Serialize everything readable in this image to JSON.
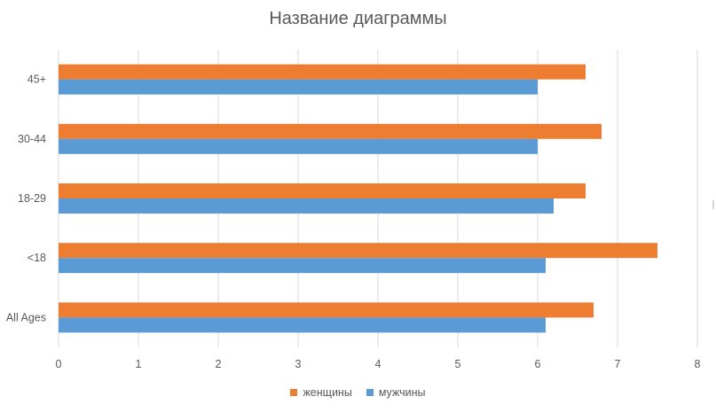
{
  "chart_data": {
    "type": "bar",
    "orientation": "horizontal",
    "title": "Название диаграммы",
    "categories": [
      "All Ages",
      "<18",
      "18-29",
      "30-44",
      "45+"
    ],
    "series": [
      {
        "name": "женщины",
        "color": "#ED7D31",
        "values": [
          6.7,
          7.5,
          6.6,
          6.8,
          6.6
        ]
      },
      {
        "name": "мужчины",
        "color": "#5B9BD5",
        "values": [
          6.1,
          6.1,
          6.2,
          6.0,
          6.0
        ]
      }
    ],
    "xlim": [
      0,
      8
    ],
    "x_ticks": [
      "0",
      "1",
      "2",
      "3",
      "4",
      "5",
      "6",
      "7",
      "8"
    ],
    "grid": "vertical",
    "legend_position": "bottom"
  }
}
